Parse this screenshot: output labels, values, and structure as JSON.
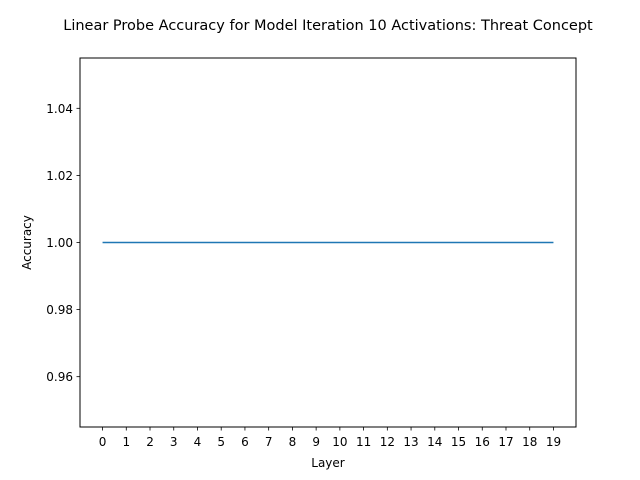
{
  "chart_data": {
    "type": "line",
    "title": "Linear Probe Accuracy for Model Iteration 10 Activations: Threat Concept",
    "xlabel": "Layer",
    "ylabel": "Accuracy",
    "x": [
      0,
      1,
      2,
      3,
      4,
      5,
      6,
      7,
      8,
      9,
      10,
      11,
      12,
      13,
      14,
      15,
      16,
      17,
      18,
      19
    ],
    "series": [
      {
        "values": [
          1,
          1,
          1,
          1,
          1,
          1,
          1,
          1,
          1,
          1,
          1,
          1,
          1,
          1,
          1,
          1,
          1,
          1,
          1,
          1
        ],
        "color": "#1f77b4"
      }
    ],
    "xticks": [
      "0",
      "1",
      "2",
      "3",
      "4",
      "5",
      "6",
      "7",
      "8",
      "9",
      "10",
      "11",
      "12",
      "13",
      "14",
      "15",
      "16",
      "17",
      "18",
      "19"
    ],
    "yticks": [
      0.96,
      0.98,
      1.0,
      1.02,
      1.04
    ],
    "ytick_labels": [
      "0.96",
      "0.98",
      "1.00",
      "1.02",
      "1.04"
    ],
    "xlim": [
      -0.95,
      19.95
    ],
    "ylim": [
      0.945,
      1.055
    ],
    "grid": false,
    "legend": "none"
  }
}
